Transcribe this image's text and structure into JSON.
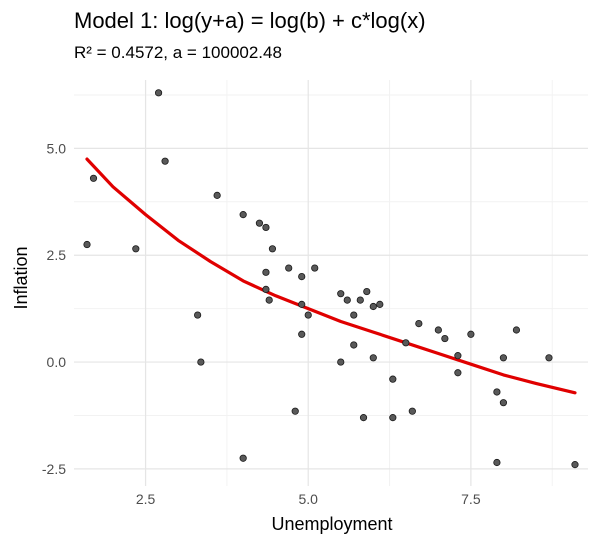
{
  "chart_data": {
    "type": "scatter",
    "title": "Model 1: log(y+a) = log(b) + c*log(x)",
    "subtitle": "R² = 0.4572, a = 100002.48",
    "xlabel": "Unemployment",
    "ylabel": "Inflation",
    "xlim": [
      1.4,
      9.3
    ],
    "ylim": [
      -2.9,
      6.6
    ],
    "x_ticks": [
      2.5,
      5.0,
      7.5
    ],
    "x_tick_labels": [
      "2.5",
      "5.0",
      "7.5"
    ],
    "y_ticks": [
      -2.5,
      0.0,
      2.5,
      5.0
    ],
    "y_tick_labels": [
      "-2.5",
      "0.0",
      "2.5",
      "5.0"
    ],
    "grid": true,
    "points": [
      {
        "x": 1.6,
        "y": 2.75
      },
      {
        "x": 1.7,
        "y": 4.3
      },
      {
        "x": 2.7,
        "y": 6.3
      },
      {
        "x": 2.8,
        "y": 4.7
      },
      {
        "x": 2.35,
        "y": 2.65
      },
      {
        "x": 3.3,
        "y": 1.1
      },
      {
        "x": 3.35,
        "y": 0.0
      },
      {
        "x": 3.6,
        "y": 3.9
      },
      {
        "x": 4.0,
        "y": 3.45
      },
      {
        "x": 4.25,
        "y": 3.25
      },
      {
        "x": 4.35,
        "y": 3.15
      },
      {
        "x": 4.45,
        "y": 2.65
      },
      {
        "x": 4.35,
        "y": 2.1
      },
      {
        "x": 4.35,
        "y": 1.7
      },
      {
        "x": 4.4,
        "y": 1.45
      },
      {
        "x": 4.7,
        "y": 2.2
      },
      {
        "x": 4.9,
        "y": 2.0
      },
      {
        "x": 5.1,
        "y": 2.2
      },
      {
        "x": 4.9,
        "y": 1.35
      },
      {
        "x": 5.0,
        "y": 1.1
      },
      {
        "x": 4.9,
        "y": 0.65
      },
      {
        "x": 4.8,
        "y": -1.15
      },
      {
        "x": 4.0,
        "y": -2.25
      },
      {
        "x": 5.5,
        "y": 1.6
      },
      {
        "x": 5.6,
        "y": 1.45
      },
      {
        "x": 5.8,
        "y": 1.45
      },
      {
        "x": 5.9,
        "y": 1.65
      },
      {
        "x": 6.0,
        "y": 1.3
      },
      {
        "x": 6.1,
        "y": 1.35
      },
      {
        "x": 5.7,
        "y": 1.1
      },
      {
        "x": 5.7,
        "y": 0.4
      },
      {
        "x": 5.5,
        "y": 0.0
      },
      {
        "x": 6.0,
        "y": 0.1
      },
      {
        "x": 6.5,
        "y": 0.45
      },
      {
        "x": 6.7,
        "y": 0.9
      },
      {
        "x": 7.0,
        "y": 0.75
      },
      {
        "x": 7.1,
        "y": 0.55
      },
      {
        "x": 7.3,
        "y": 0.15
      },
      {
        "x": 7.3,
        "y": -0.25
      },
      {
        "x": 7.5,
        "y": 0.65
      },
      {
        "x": 8.0,
        "y": 0.1
      },
      {
        "x": 8.2,
        "y": 0.75
      },
      {
        "x": 8.7,
        "y": 0.1
      },
      {
        "x": 6.3,
        "y": -0.4
      },
      {
        "x": 5.85,
        "y": -1.3
      },
      {
        "x": 6.3,
        "y": -1.3
      },
      {
        "x": 6.6,
        "y": -1.15
      },
      {
        "x": 7.9,
        "y": -0.7
      },
      {
        "x": 8.0,
        "y": -0.95
      },
      {
        "x": 7.9,
        "y": -2.35
      },
      {
        "x": 9.1,
        "y": -2.4
      }
    ],
    "fit_line": {
      "x": [
        1.6,
        2.0,
        2.5,
        3.0,
        3.5,
        4.0,
        4.5,
        5.0,
        5.5,
        6.0,
        6.5,
        7.0,
        7.5,
        8.0,
        8.5,
        9.1
      ],
      "y": [
        4.75,
        4.1,
        3.45,
        2.85,
        2.35,
        1.9,
        1.55,
        1.25,
        0.95,
        0.7,
        0.45,
        0.2,
        -0.05,
        -0.3,
        -0.5,
        -0.72
      ]
    },
    "colors": {
      "point_fill": "#595959",
      "point_stroke": "#1a1a1a",
      "fit_line": "#e00000",
      "grid_major": "#e5e5e5",
      "grid_minor": "#f2f2f2"
    }
  }
}
